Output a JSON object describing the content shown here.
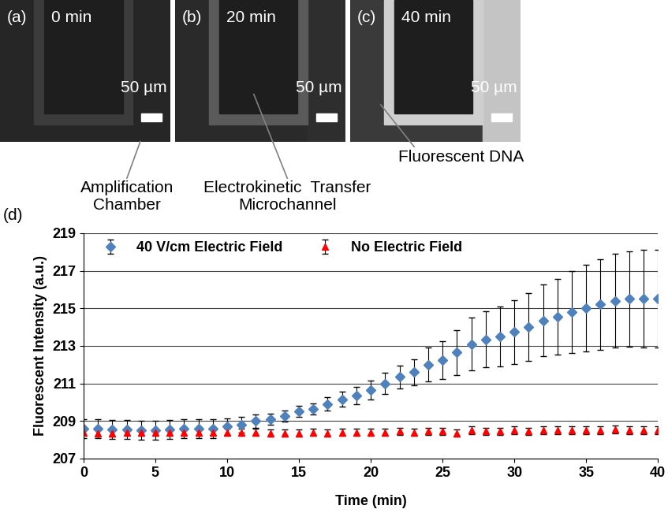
{
  "images": [
    {
      "label": "(a)",
      "time": "0 min",
      "scale_bar": "50 µm",
      "callout": "Amplification\nChamber"
    },
    {
      "label": "(b)",
      "time": "20 min",
      "scale_bar": "50 µm",
      "callout": "Electrokinetic  Transfer\nMicrochannel"
    },
    {
      "label": "(c)",
      "time": "40 min",
      "scale_bar": "50 µm",
      "callout": "Fluorescent DNA"
    }
  ],
  "chart_data": {
    "type": "scatter",
    "label": "(d)",
    "x_label": "Time (min)",
    "y_label": "Fluorescent Intensity (a.u.)",
    "x": [
      0,
      1,
      2,
      3,
      4,
      5,
      6,
      7,
      8,
      9,
      10,
      11,
      12,
      13,
      14,
      15,
      16,
      17,
      18,
      19,
      20,
      21,
      22,
      23,
      24,
      25,
      26,
      27,
      28,
      29,
      30,
      31,
      32,
      33,
      34,
      35,
      36,
      37,
      38,
      39,
      40
    ],
    "xlim": [
      0,
      40
    ],
    "xticks": [
      0,
      5,
      10,
      15,
      20,
      25,
      30,
      35,
      40
    ],
    "ylim": [
      207,
      219
    ],
    "yticks": [
      207,
      209,
      211,
      213,
      215,
      217,
      219
    ],
    "grid": true,
    "legend": "upper left",
    "series": [
      {
        "name": "40 V/cm Electric Field",
        "color": "#4f81bd",
        "marker": "diamond",
        "values": [
          208.6,
          208.6,
          208.55,
          208.55,
          208.5,
          208.5,
          208.55,
          208.6,
          208.6,
          208.6,
          208.7,
          208.8,
          209.0,
          209.1,
          209.25,
          209.5,
          209.65,
          209.9,
          210.15,
          210.35,
          210.65,
          211.0,
          211.35,
          211.6,
          212.0,
          212.25,
          212.65,
          213.1,
          213.35,
          213.5,
          213.75,
          214.0,
          214.35,
          214.55,
          214.8,
          215.0,
          215.2,
          215.4,
          215.5,
          215.5,
          215.5
        ],
        "errors": [
          0.5,
          0.5,
          0.5,
          0.5,
          0.5,
          0.5,
          0.5,
          0.5,
          0.5,
          0.5,
          0.45,
          0.4,
          0.35,
          0.3,
          0.3,
          0.3,
          0.3,
          0.35,
          0.4,
          0.45,
          0.5,
          0.55,
          0.6,
          0.7,
          0.9,
          1.0,
          1.2,
          1.4,
          1.5,
          1.6,
          1.7,
          1.8,
          1.9,
          2.0,
          2.2,
          2.3,
          2.4,
          2.5,
          2.55,
          2.6,
          2.6
        ]
      },
      {
        "name": "No Electric Field",
        "color": "#ff0000",
        "marker": "triangle",
        "values": [
          208.4,
          208.35,
          208.35,
          208.4,
          208.4,
          208.4,
          208.4,
          208.4,
          208.4,
          208.4,
          208.4,
          208.4,
          208.4,
          208.35,
          208.35,
          208.35,
          208.4,
          208.35,
          208.4,
          208.4,
          208.4,
          208.4,
          208.45,
          208.4,
          208.45,
          208.45,
          208.35,
          208.5,
          208.45,
          208.45,
          208.5,
          208.45,
          208.5,
          208.5,
          208.5,
          208.5,
          208.5,
          208.55,
          208.5,
          208.5,
          208.5
        ],
        "errors": [
          0.2,
          0.2,
          0.2,
          0.2,
          0.2,
          0.2,
          0.2,
          0.2,
          0.2,
          0.2,
          0.2,
          0.2,
          0.2,
          0.2,
          0.2,
          0.2,
          0.2,
          0.2,
          0.2,
          0.2,
          0.2,
          0.2,
          0.2,
          0.2,
          0.2,
          0.2,
          0.2,
          0.2,
          0.2,
          0.2,
          0.2,
          0.2,
          0.2,
          0.2,
          0.2,
          0.2,
          0.2,
          0.2,
          0.2,
          0.2,
          0.2
        ]
      }
    ]
  }
}
